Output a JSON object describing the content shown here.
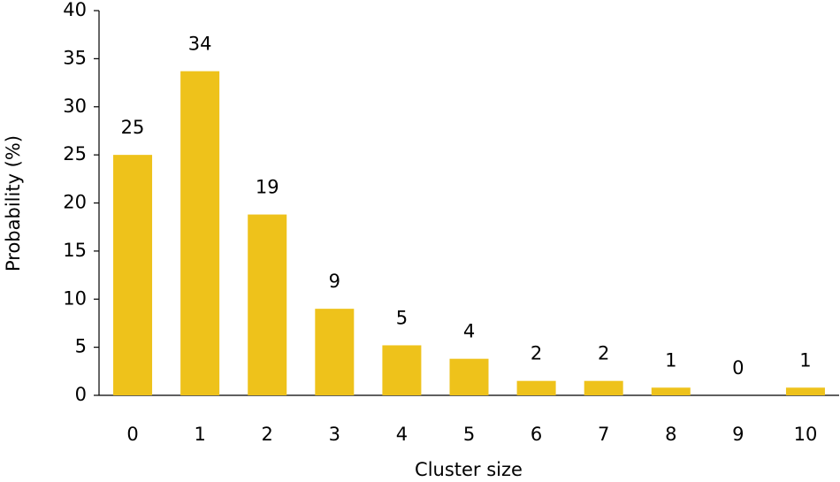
{
  "chart_data": {
    "type": "bar",
    "x_label": "Cluster size",
    "y_label": "Probability (%)",
    "categories": [
      "0",
      "1",
      "2",
      "3",
      "4",
      "5",
      "6",
      "7",
      "8",
      "9",
      "10"
    ],
    "values": [
      25,
      33.7,
      18.8,
      9,
      5.2,
      3.8,
      1.5,
      1.5,
      0.8,
      0,
      0.8
    ],
    "value_labels": [
      "25",
      "34",
      "19",
      "9",
      "5",
      "4",
      "2",
      "2",
      "1",
      "0",
      "1"
    ],
    "color": "#eec21b",
    "ylim": [
      0,
      40
    ],
    "yticks": [
      0,
      5,
      10,
      15,
      20,
      25,
      30,
      35,
      40
    ],
    "grid": false
  }
}
